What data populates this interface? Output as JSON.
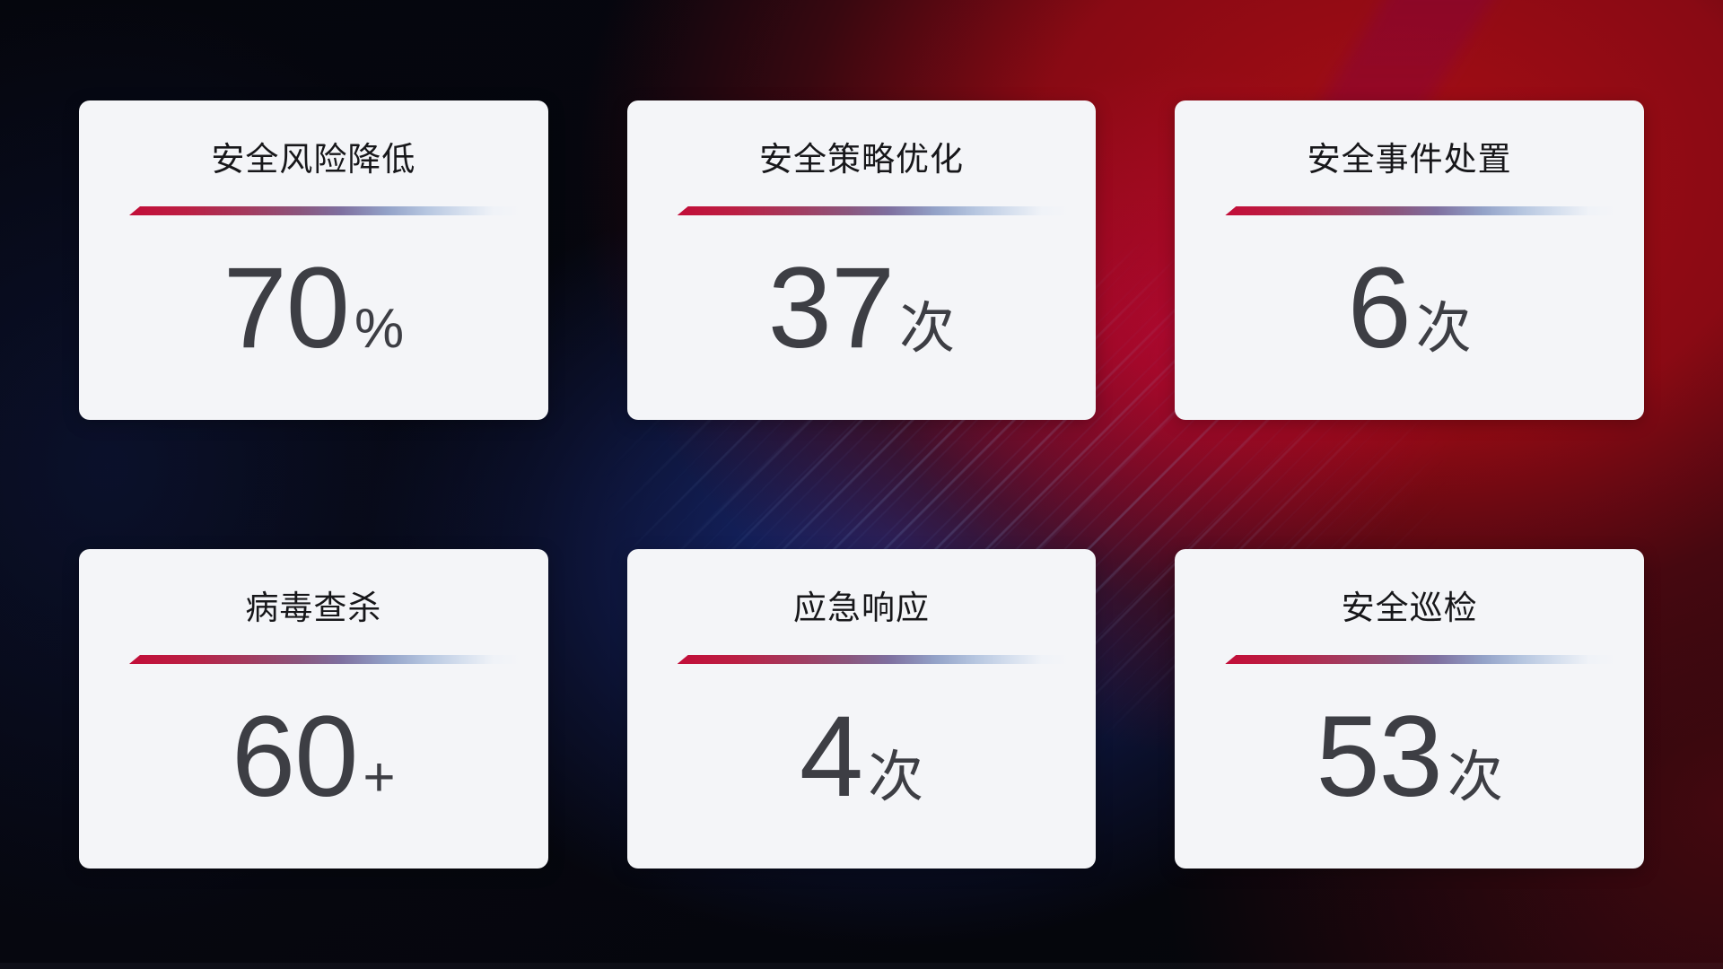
{
  "cards": [
    {
      "title": "安全风险降低",
      "value": "70",
      "unit": "%"
    },
    {
      "title": "安全策略优化",
      "value": "37",
      "unit": "次"
    },
    {
      "title": "安全事件处置",
      "value": "6",
      "unit": "次"
    },
    {
      "title": "病毒查杀",
      "value": "60",
      "unit": "+"
    },
    {
      "title": "应急响应",
      "value": "4",
      "unit": "次"
    },
    {
      "title": "安全巡检",
      "value": "53",
      "unit": "次"
    }
  ],
  "colors": {
    "accent_red": "#c20d38",
    "divider_blue": "#93a2c8",
    "card_background": "#f4f5f8",
    "title_text": "#17171a",
    "value_text": "#3d3e44",
    "background_red_glow": "#a60d15",
    "background_crimson_hotspot": "#c60644",
    "background_blue_glow": "#192c7e",
    "background_base": "#05060c"
  }
}
